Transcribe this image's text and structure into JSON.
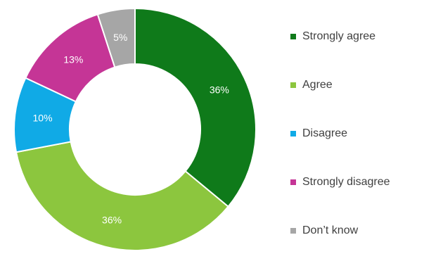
{
  "chart_data": {
    "type": "pie",
    "variant": "donut",
    "title": "",
    "legend_position": "right",
    "categories": [
      "Strongly agree",
      "Agree",
      "Disagree",
      "Strongly disagree",
      "Don’t know"
    ],
    "values": [
      36,
      36,
      10,
      13,
      5
    ],
    "data_labels": [
      "36%",
      "36%",
      "10%",
      "13%",
      "5%"
    ],
    "colors": [
      "#0f7a1a",
      "#8cc63e",
      "#10aae6",
      "#c53596",
      "#a6a6a6"
    ],
    "unit": "%"
  }
}
